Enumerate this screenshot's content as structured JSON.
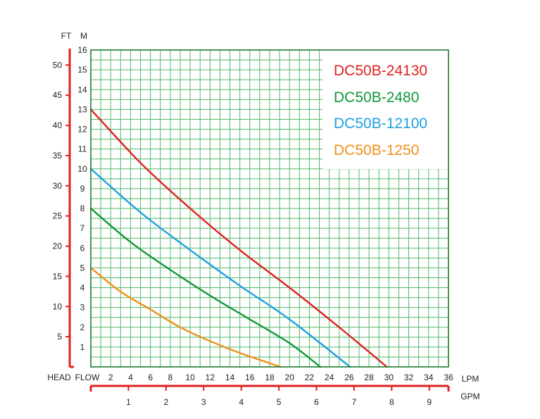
{
  "chart_data": {
    "type": "line",
    "units": {
      "ft": "FT",
      "m": "M",
      "lpm": "LPM",
      "gpm": "GPM"
    },
    "axis_labels": {
      "head": "HEAD",
      "flow": "FLOW"
    },
    "x_lpm_ticks": [
      "2",
      "4",
      "6",
      "8",
      "10",
      "12",
      "14",
      "16",
      "18",
      "20",
      "22",
      "24",
      "26",
      "28",
      "30",
      "32",
      "34",
      "36"
    ],
    "x_gpm_ticks": [
      "1",
      "2",
      "3",
      "4",
      "5",
      "6",
      "7",
      "8",
      "9"
    ],
    "y_m_ticks": [
      "1",
      "2",
      "3",
      "4",
      "5",
      "6",
      "7",
      "8",
      "9",
      "10",
      "11",
      "12",
      "13",
      "14",
      "15",
      "16"
    ],
    "y_ft_ticks": [
      "5",
      "10",
      "15",
      "20",
      "25",
      "30",
      "35",
      "40",
      "45",
      "50"
    ],
    "xlim": [
      0,
      36
    ],
    "ylim": [
      0,
      16
    ],
    "grid": true,
    "legend_position": "top-right",
    "series": [
      {
        "name": "DC50B-24130",
        "color": "#e02020",
        "points": [
          [
            0,
            13.0
          ],
          [
            5,
            10.3
          ],
          [
            10,
            8.0
          ],
          [
            15,
            5.9
          ],
          [
            20,
            4.0
          ],
          [
            25,
            2.0
          ],
          [
            29.8,
            0
          ]
        ]
      },
      {
        "name": "DC50B-2480",
        "color": "#10973a",
        "points": [
          [
            0,
            8.0
          ],
          [
            4,
            6.3
          ],
          [
            8,
            4.9
          ],
          [
            12,
            3.6
          ],
          [
            16,
            2.4
          ],
          [
            20,
            1.2
          ],
          [
            23.1,
            0
          ]
        ]
      },
      {
        "name": "DC50B-12100",
        "color": "#1ea0e0",
        "points": [
          [
            0,
            10.0
          ],
          [
            5,
            7.8
          ],
          [
            10,
            5.9
          ],
          [
            15,
            4.1
          ],
          [
            20,
            2.4
          ],
          [
            26.1,
            0
          ]
        ]
      },
      {
        "name": "DC50B-1250",
        "color": "#f09018",
        "points": [
          [
            0,
            5.0
          ],
          [
            3,
            3.8
          ],
          [
            6,
            2.9
          ],
          [
            9,
            2.0
          ],
          [
            12,
            1.3
          ],
          [
            15,
            0.7
          ],
          [
            19.1,
            0
          ]
        ]
      }
    ]
  }
}
